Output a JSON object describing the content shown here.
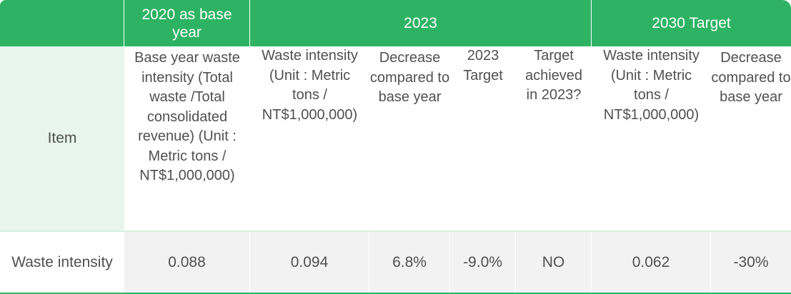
{
  "table": {
    "group_headers": {
      "base_year": "2020 as base year",
      "year_2023": "2023",
      "target_2030": "2030 Target"
    },
    "item_label": "Item",
    "sub_headers": {
      "base_intensity": "Base year waste intensity (Total waste /Total consolidated revenue) (Unit : Metric tons / NT$1,000,000)",
      "intensity_2023": "Waste intensity (Unit : Metric tons / NT$1,000,000)",
      "decrease_2023": "Decrease compared to base year",
      "target_2023": "2023 Target",
      "achieved_2023": "Target achieved in 2023?",
      "intensity_2030": "Waste intensity (Unit : Metric tons / NT$1,000,000)",
      "decrease_2030": "Decrease compared to base year"
    },
    "row": {
      "label": "Waste intensity",
      "base_intensity": "0.088",
      "intensity_2023": "0.094",
      "decrease_2023": "6.8%",
      "target_2023": "-9.0%",
      "achieved_2023": "NO",
      "intensity_2030": "0.062",
      "decrease_2030": "-30%"
    },
    "colors": {
      "header_green": "#2eb364",
      "label_bg": "#e8f6ee",
      "data_bg": "#f2f2f2",
      "text": "#505050"
    }
  }
}
